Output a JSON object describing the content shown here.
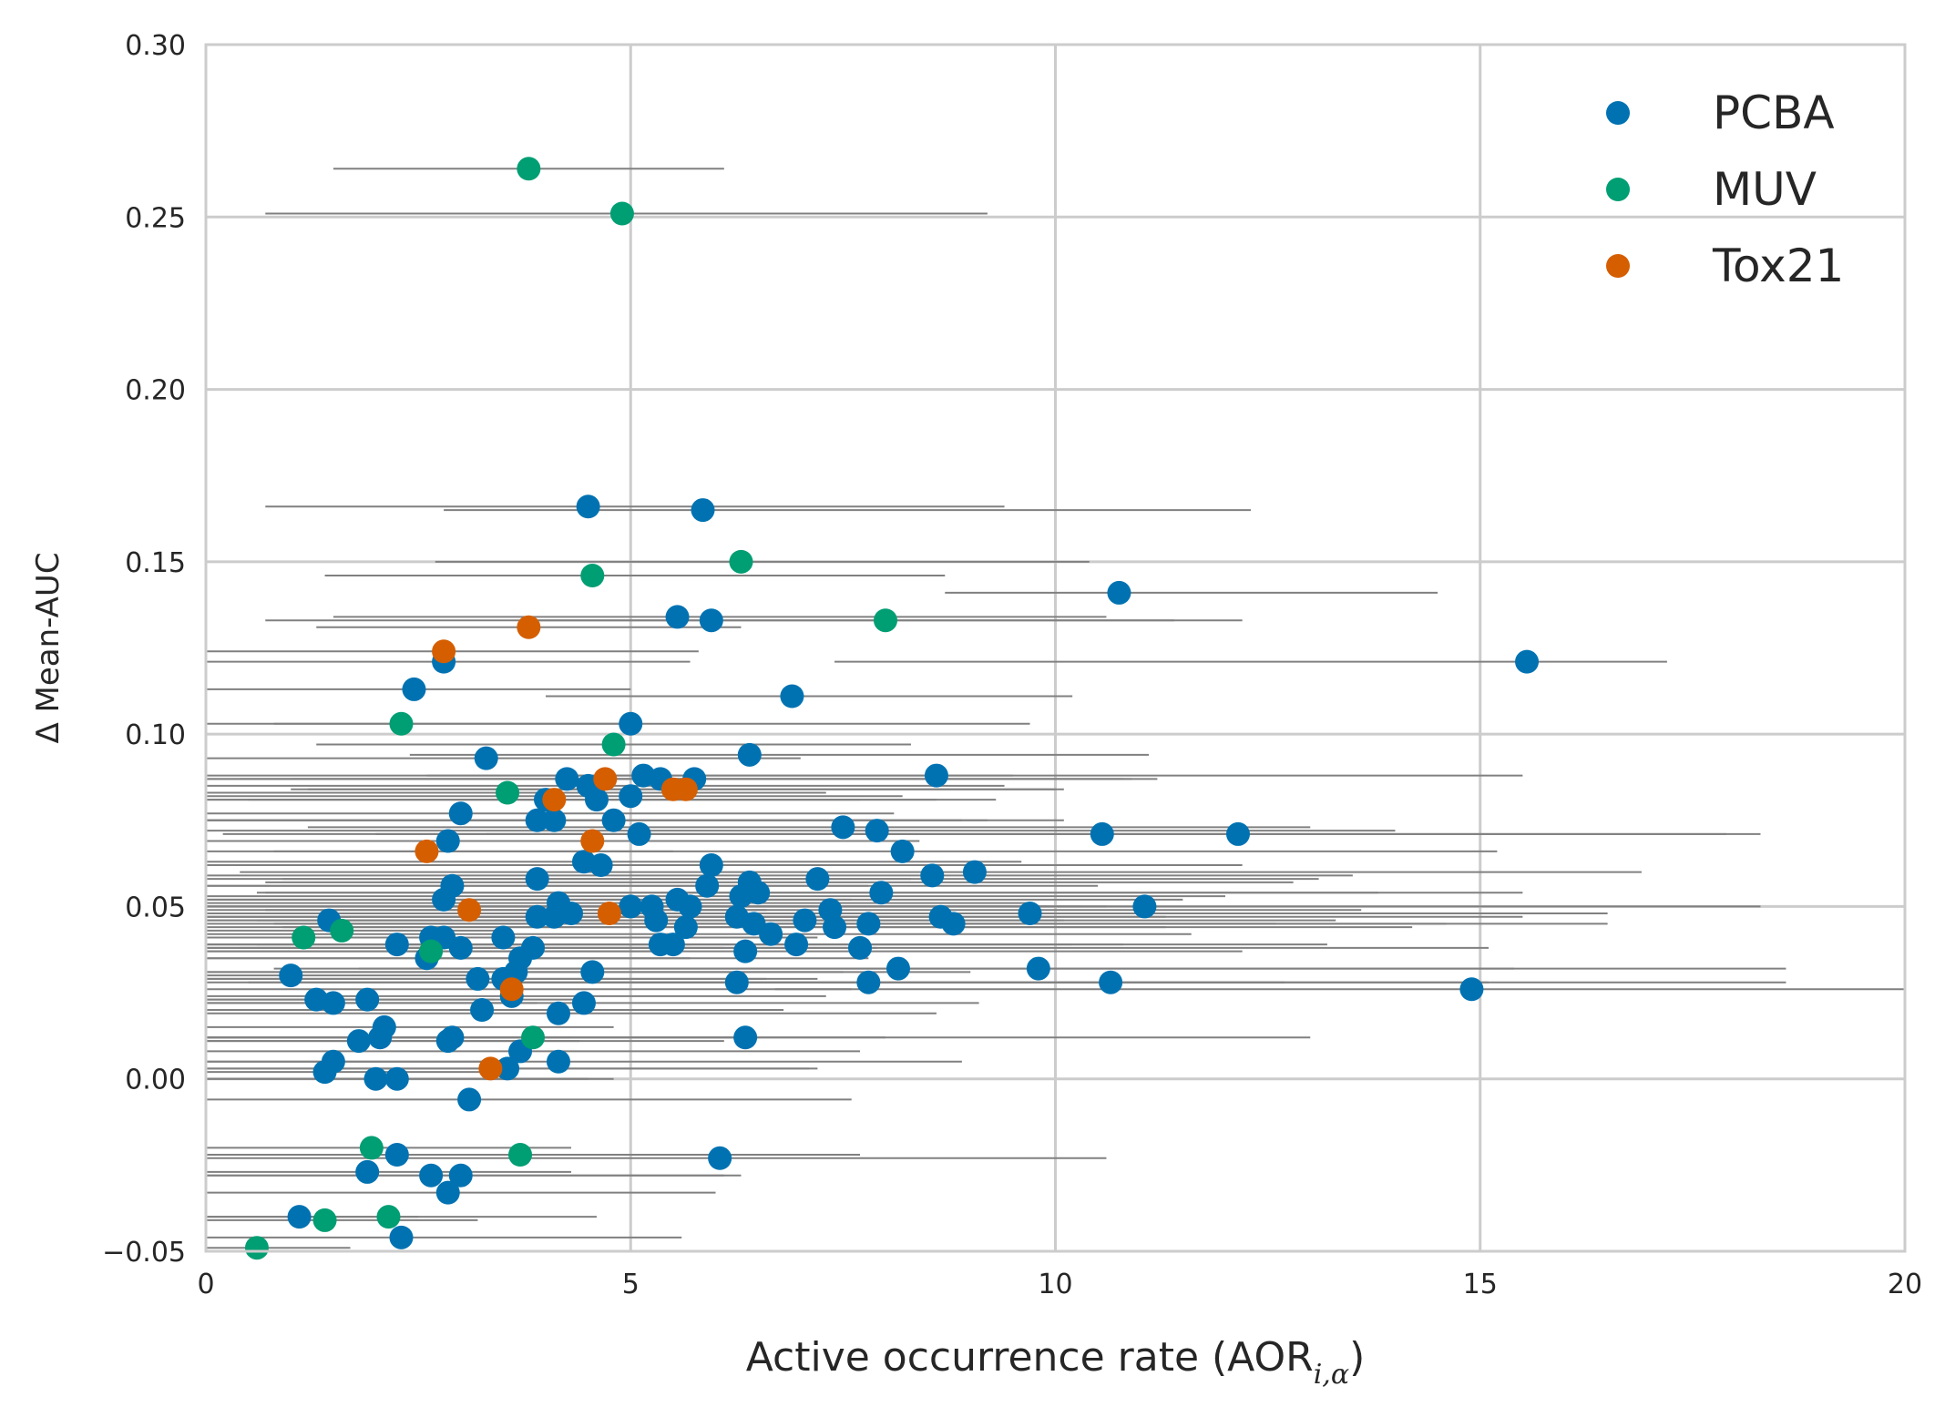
{
  "chart_data": {
    "type": "scatter",
    "title": "",
    "xlabel": "Active occurrence rate (AOR",
    "xlabel_subscript": "i,α",
    "xlabel_close": ")",
    "ylabel": "Δ Mean-AUC",
    "xlim": [
      0,
      20
    ],
    "ylim": [
      -0.05,
      0.3
    ],
    "grid": true,
    "legend_position": "top-right",
    "x_ticks": [
      0,
      5,
      10,
      15,
      20
    ],
    "x_tick_labels": [
      "0",
      "5",
      "10",
      "15",
      "20"
    ],
    "y_ticks": [
      -0.05,
      0.0,
      0.05,
      0.1,
      0.15,
      0.2,
      0.25,
      0.3
    ],
    "y_tick_labels": [
      "−0.05",
      "0.00",
      "0.05",
      "0.10",
      "0.15",
      "0.20",
      "0.25",
      "0.30"
    ],
    "series": [
      {
        "name": "PCBA",
        "color": "#0072B2",
        "points": [
          [
            4.5,
            0.166
          ],
          [
            5.85,
            0.165
          ],
          [
            10.75,
            0.141
          ],
          [
            15.55,
            0.121
          ],
          [
            5.55,
            0.134
          ],
          [
            5.95,
            0.133
          ],
          [
            6.9,
            0.111
          ],
          [
            2.45,
            0.113
          ],
          [
            2.8,
            0.121
          ],
          [
            5.0,
            0.103
          ],
          [
            6.4,
            0.094
          ],
          [
            3.3,
            0.093
          ],
          [
            8.6,
            0.088
          ],
          [
            4.25,
            0.087
          ],
          [
            5.15,
            0.088
          ],
          [
            5.35,
            0.087
          ],
          [
            5.75,
            0.087
          ],
          [
            4.5,
            0.085
          ],
          [
            4.6,
            0.081
          ],
          [
            4.0,
            0.081
          ],
          [
            5.0,
            0.082
          ],
          [
            4.8,
            0.075
          ],
          [
            3.0,
            0.077
          ],
          [
            3.9,
            0.075
          ],
          [
            4.1,
            0.075
          ],
          [
            7.5,
            0.073
          ],
          [
            7.9,
            0.072
          ],
          [
            5.1,
            0.071
          ],
          [
            10.55,
            0.071
          ],
          [
            12.15,
            0.071
          ],
          [
            2.85,
            0.069
          ],
          [
            8.2,
            0.066
          ],
          [
            4.45,
            0.063
          ],
          [
            4.65,
            0.062
          ],
          [
            5.95,
            0.062
          ],
          [
            9.05,
            0.06
          ],
          [
            8.55,
            0.059
          ],
          [
            3.9,
            0.058
          ],
          [
            7.2,
            0.058
          ],
          [
            5.9,
            0.056
          ],
          [
            2.9,
            0.056
          ],
          [
            6.4,
            0.057
          ],
          [
            6.5,
            0.054
          ],
          [
            7.95,
            0.054
          ],
          [
            6.3,
            0.053
          ],
          [
            2.8,
            0.052
          ],
          [
            4.15,
            0.051
          ],
          [
            5.0,
            0.05
          ],
          [
            5.25,
            0.05
          ],
          [
            5.55,
            0.052
          ],
          [
            5.7,
            0.05
          ],
          [
            11.05,
            0.05
          ],
          [
            9.7,
            0.048
          ],
          [
            7.35,
            0.049
          ],
          [
            3.9,
            0.047
          ],
          [
            4.3,
            0.048
          ],
          [
            6.25,
            0.047
          ],
          [
            7.05,
            0.046
          ],
          [
            4.1,
            0.047
          ],
          [
            5.3,
            0.046
          ],
          [
            6.45,
            0.045
          ],
          [
            7.8,
            0.045
          ],
          [
            8.65,
            0.047
          ],
          [
            8.8,
            0.045
          ],
          [
            5.65,
            0.044
          ],
          [
            7.4,
            0.044
          ],
          [
            6.65,
            0.042
          ],
          [
            3.5,
            0.041
          ],
          [
            2.65,
            0.041
          ],
          [
            2.8,
            0.041
          ],
          [
            1.45,
            0.046
          ],
          [
            2.25,
            0.039
          ],
          [
            3.0,
            0.038
          ],
          [
            3.85,
            0.038
          ],
          [
            5.35,
            0.039
          ],
          [
            5.5,
            0.039
          ],
          [
            6.95,
            0.039
          ],
          [
            7.7,
            0.038
          ],
          [
            2.6,
            0.035
          ],
          [
            3.7,
            0.035
          ],
          [
            6.35,
            0.037
          ],
          [
            1.0,
            0.03
          ],
          [
            3.2,
            0.029
          ],
          [
            3.5,
            0.029
          ],
          [
            3.65,
            0.031
          ],
          [
            4.55,
            0.031
          ],
          [
            6.25,
            0.028
          ],
          [
            7.8,
            0.028
          ],
          [
            9.8,
            0.032
          ],
          [
            8.15,
            0.032
          ],
          [
            10.65,
            0.028
          ],
          [
            14.9,
            0.026
          ],
          [
            1.3,
            0.023
          ],
          [
            1.5,
            0.022
          ],
          [
            1.9,
            0.023
          ],
          [
            3.6,
            0.024
          ],
          [
            3.25,
            0.02
          ],
          [
            4.15,
            0.019
          ],
          [
            4.45,
            0.022
          ],
          [
            2.1,
            0.015
          ],
          [
            1.8,
            0.011
          ],
          [
            2.05,
            0.012
          ],
          [
            2.85,
            0.011
          ],
          [
            2.9,
            0.012
          ],
          [
            3.7,
            0.008
          ],
          [
            6.35,
            0.012
          ],
          [
            4.15,
            0.005
          ],
          [
            1.5,
            0.005
          ],
          [
            1.4,
            0.002
          ],
          [
            3.55,
            0.003
          ],
          [
            2.0,
            0.0
          ],
          [
            2.25,
            0.0
          ],
          [
            3.1,
            -0.006
          ],
          [
            6.05,
            -0.023
          ],
          [
            2.25,
            -0.022
          ],
          [
            1.9,
            -0.027
          ],
          [
            2.65,
            -0.028
          ],
          [
            3.0,
            -0.028
          ],
          [
            2.85,
            -0.033
          ],
          [
            1.1,
            -0.04
          ],
          [
            2.3,
            -0.046
          ]
        ],
        "xerr": [
          [
            0.7,
            9.4
          ],
          [
            2.8,
            12.3
          ],
          [
            8.7,
            14.5
          ],
          [
            7.4,
            17.2
          ],
          [
            1.5,
            10.6
          ],
          [
            0.7,
            11.4
          ],
          [
            4.0,
            10.2
          ],
          [
            -0.3,
            5.0
          ],
          [
            -0.2,
            5.7
          ],
          [
            0.8,
            9.7
          ],
          [
            2.4,
            11.1
          ],
          [
            -0.1,
            7.0
          ],
          [
            2.6,
            15.5
          ],
          [
            -0.4,
            10.8
          ],
          [
            -0.3,
            9.5
          ],
          [
            0.4,
            11.2
          ],
          [
            -0.4,
            10.9
          ],
          [
            -0.5,
            9.4
          ],
          [
            -0.4,
            8.6
          ],
          [
            -0.1,
            9.3
          ],
          [
            -0.2,
            8.2
          ],
          [
            0.0,
            8.9
          ],
          [
            -0.3,
            8.1
          ],
          [
            0.0,
            9.2
          ],
          [
            -0.2,
            10.1
          ],
          [
            1.2,
            13.0
          ],
          [
            -0.2,
            14.0
          ],
          [
            0.2,
            12.2
          ],
          [
            2.0,
            18.3
          ],
          [
            3.3,
            17.9
          ],
          [
            -0.3,
            7.5
          ],
          [
            0.8,
            15.2
          ],
          [
            -0.4,
            9.6
          ],
          [
            -0.2,
            9.9
          ],
          [
            1.0,
            12.2
          ],
          [
            0.4,
            16.9
          ],
          [
            0.0,
            13.5
          ],
          [
            -0.4,
            8.3
          ],
          [
            0.9,
            13.1
          ],
          [
            -0.3,
            10.5
          ],
          [
            -0.2,
            7.8
          ],
          [
            0.7,
            12.8
          ],
          [
            0.7,
            13.8
          ],
          [
            0.6,
            15.5
          ],
          [
            -0.1,
            12.0
          ],
          [
            -0.3,
            7.6
          ],
          [
            -0.4,
            9.7
          ],
          [
            -0.2,
            9.9
          ],
          [
            -0.2,
            10.6
          ],
          [
            -0.4,
            11.5
          ],
          [
            -0.2,
            10.3
          ],
          [
            3.0,
            18.3
          ],
          [
            2.7,
            16.5
          ],
          [
            0.7,
            13.6
          ],
          [
            -0.3,
            8.7
          ],
          [
            -0.4,
            9.1
          ],
          [
            -0.2,
            11.3
          ],
          [
            0.6,
            13.3
          ],
          [
            -0.4,
            8.9
          ],
          [
            -0.2,
            10.1
          ],
          [
            0.0,
            12.6
          ],
          [
            0.8,
            14.6
          ],
          [
            1.4,
            15.5
          ],
          [
            0.8,
            16.5
          ],
          [
            -0.2,
            11.3
          ],
          [
            0.9,
            14.2
          ],
          [
            -0.4,
            11.6
          ],
          [
            -0.2,
            7.2
          ],
          [
            -0.3,
            6.2
          ],
          [
            -0.3,
            6.4
          ],
          [
            -0.4,
            4.8
          ],
          [
            -0.4,
            5.7
          ],
          [
            -0.2,
            6.1
          ],
          [
            -0.4,
            7.9
          ],
          [
            -0.3,
            10.2
          ],
          [
            -0.2,
            10.8
          ],
          [
            0.6,
            13.2
          ],
          [
            0.4,
            15.1
          ],
          [
            -0.3,
            5.7
          ],
          [
            -0.4,
            7.8
          ],
          [
            -0.4,
            12.2
          ],
          [
            -0.3,
            3.1
          ],
          [
            -0.4,
            6.6
          ],
          [
            -0.3,
            7.2
          ],
          [
            -0.4,
            7.5
          ],
          [
            -0.3,
            9.0
          ],
          [
            -0.3,
            12.7
          ],
          [
            0.5,
            15.1
          ],
          [
            1.8,
            18.6
          ],
          [
            0.8,
            15.4
          ],
          [
            3.3,
            18.6
          ],
          [
            6.7,
            22.0
          ],
          [
            -0.4,
            3.4
          ],
          [
            -0.4,
            3.9
          ],
          [
            -0.3,
            4.5
          ],
          [
            -0.4,
            7.3
          ],
          [
            -0.3,
            6.8
          ],
          [
            -0.3,
            8.6
          ],
          [
            -0.2,
            9.1
          ],
          [
            -0.3,
            4.8
          ],
          [
            -0.3,
            4.4
          ],
          [
            -0.4,
            4.3
          ],
          [
            -0.4,
            6.1
          ],
          [
            -0.3,
            6.5
          ],
          [
            -0.2,
            7.7
          ],
          [
            -0.4,
            13.0
          ],
          [
            -0.4,
            8.9
          ],
          [
            -0.4,
            3.5
          ],
          [
            -0.4,
            3.5
          ],
          [
            -0.3,
            7.2
          ],
          [
            -0.4,
            4.5
          ],
          [
            -0.4,
            4.8
          ],
          [
            -0.3,
            7.6
          ],
          [
            -0.3,
            10.6
          ],
          [
            -0.3,
            5.6
          ],
          [
            -0.4,
            4.3
          ],
          [
            -0.3,
            6.1
          ],
          [
            -0.3,
            6.3
          ],
          [
            -0.4,
            6.0
          ],
          [
            -0.4,
            2.5
          ],
          [
            -0.4,
            5.6
          ]
        ]
      },
      {
        "name": "MUV",
        "color": "#009E73",
        "points": [
          [
            3.8,
            0.264
          ],
          [
            4.9,
            0.251
          ],
          [
            6.3,
            0.15
          ],
          [
            4.55,
            0.146
          ],
          [
            8.0,
            0.133
          ],
          [
            2.3,
            0.103
          ],
          [
            4.8,
            0.097
          ],
          [
            3.55,
            0.083
          ],
          [
            1.6,
            0.043
          ],
          [
            1.15,
            0.041
          ],
          [
            2.65,
            0.037
          ],
          [
            3.85,
            0.012
          ],
          [
            3.7,
            -0.022
          ],
          [
            1.95,
            -0.02
          ],
          [
            2.15,
            -0.04
          ],
          [
            1.4,
            -0.041
          ],
          [
            0.6,
            -0.049
          ]
        ],
        "xerr": [
          [
            1.5,
            6.1
          ],
          [
            0.7,
            9.2
          ],
          [
            2.7,
            10.4
          ],
          [
            1.4,
            8.7
          ],
          [
            3.7,
            12.2
          ],
          [
            -0.3,
            4.9
          ],
          [
            1.3,
            8.3
          ],
          [
            -0.2,
            7.3
          ],
          [
            -0.4,
            3.6
          ],
          [
            -0.4,
            2.7
          ],
          [
            -0.3,
            5.6
          ],
          [
            -0.4,
            8.0
          ],
          [
            -0.3,
            7.7
          ],
          [
            -0.4,
            4.3
          ],
          [
            -0.4,
            4.6
          ],
          [
            -0.4,
            3.2
          ],
          [
            -0.4,
            1.7
          ]
        ]
      },
      {
        "name": "Tox21",
        "color": "#D55E00",
        "points": [
          [
            3.8,
            0.131
          ],
          [
            2.8,
            0.124
          ],
          [
            4.7,
            0.087
          ],
          [
            5.5,
            0.084
          ],
          [
            5.65,
            0.084
          ],
          [
            4.1,
            0.081
          ],
          [
            4.55,
            0.069
          ],
          [
            2.6,
            0.066
          ],
          [
            3.1,
            0.049
          ],
          [
            4.75,
            0.048
          ],
          [
            3.6,
            0.026
          ],
          [
            3.35,
            0.003
          ]
        ],
        "xerr": [
          [
            1.3,
            6.3
          ],
          [
            -0.2,
            5.8
          ],
          [
            1.0,
            8.4
          ],
          [
            1.0,
            10.0
          ],
          [
            1.2,
            10.1
          ],
          [
            0.5,
            7.7
          ],
          [
            0.7,
            8.4
          ],
          [
            -0.3,
            5.5
          ],
          [
            -0.4,
            6.6
          ],
          [
            0.5,
            9.0
          ],
          [
            -0.4,
            7.6
          ],
          [
            -0.4,
            7.1
          ]
        ]
      }
    ]
  }
}
